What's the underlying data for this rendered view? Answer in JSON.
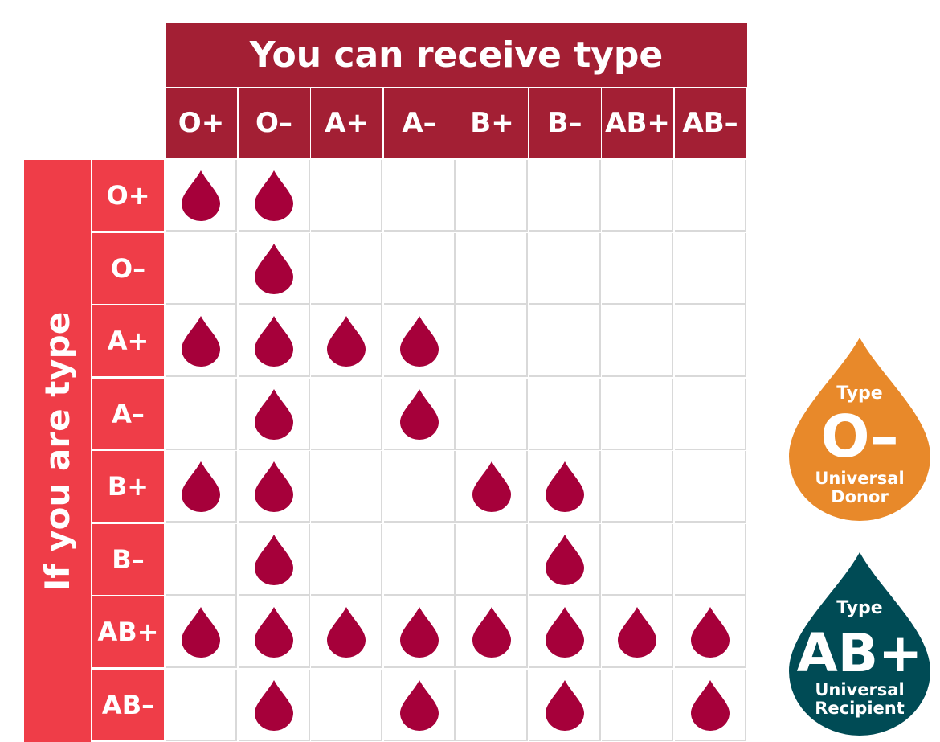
{
  "header_title": "You can receive type",
  "side_title": "If you are type",
  "column_types": [
    "O+",
    "O–",
    "A+",
    "A–",
    "B+",
    "B–",
    "AB+",
    "AB–"
  ],
  "row_types": [
    "O+",
    "O–",
    "A+",
    "A–",
    "B+",
    "B–",
    "AB+",
    "AB–"
  ],
  "compatibility": [
    [
      1,
      1,
      0,
      0,
      0,
      0,
      0,
      0
    ],
    [
      0,
      1,
      0,
      0,
      0,
      0,
      0,
      0
    ],
    [
      1,
      1,
      1,
      1,
      0,
      0,
      0,
      0
    ],
    [
      0,
      1,
      0,
      1,
      0,
      0,
      0,
      0
    ],
    [
      1,
      1,
      0,
      0,
      1,
      1,
      0,
      0
    ],
    [
      0,
      1,
      0,
      0,
      0,
      1,
      0,
      0
    ],
    [
      1,
      1,
      1,
      1,
      1,
      1,
      1,
      1
    ],
    [
      0,
      1,
      0,
      1,
      0,
      1,
      0,
      1
    ]
  ],
  "drop_icon": "blood-drop-icon",
  "colors": {
    "header": "#a31f34",
    "row_header": "#ef3d48",
    "drop": "#a6003a",
    "donor_badge": "#e8892a",
    "recipient_badge": "#004b55",
    "grid_line": "#d9d9d9"
  },
  "donor_badge": {
    "label": "Type",
    "type": "O–",
    "caption_line1": "Universal",
    "caption_line2": "Donor"
  },
  "recipient_badge": {
    "label": "Type",
    "type": "AB+",
    "caption_line1": "Universal",
    "caption_line2": "Recipient"
  }
}
